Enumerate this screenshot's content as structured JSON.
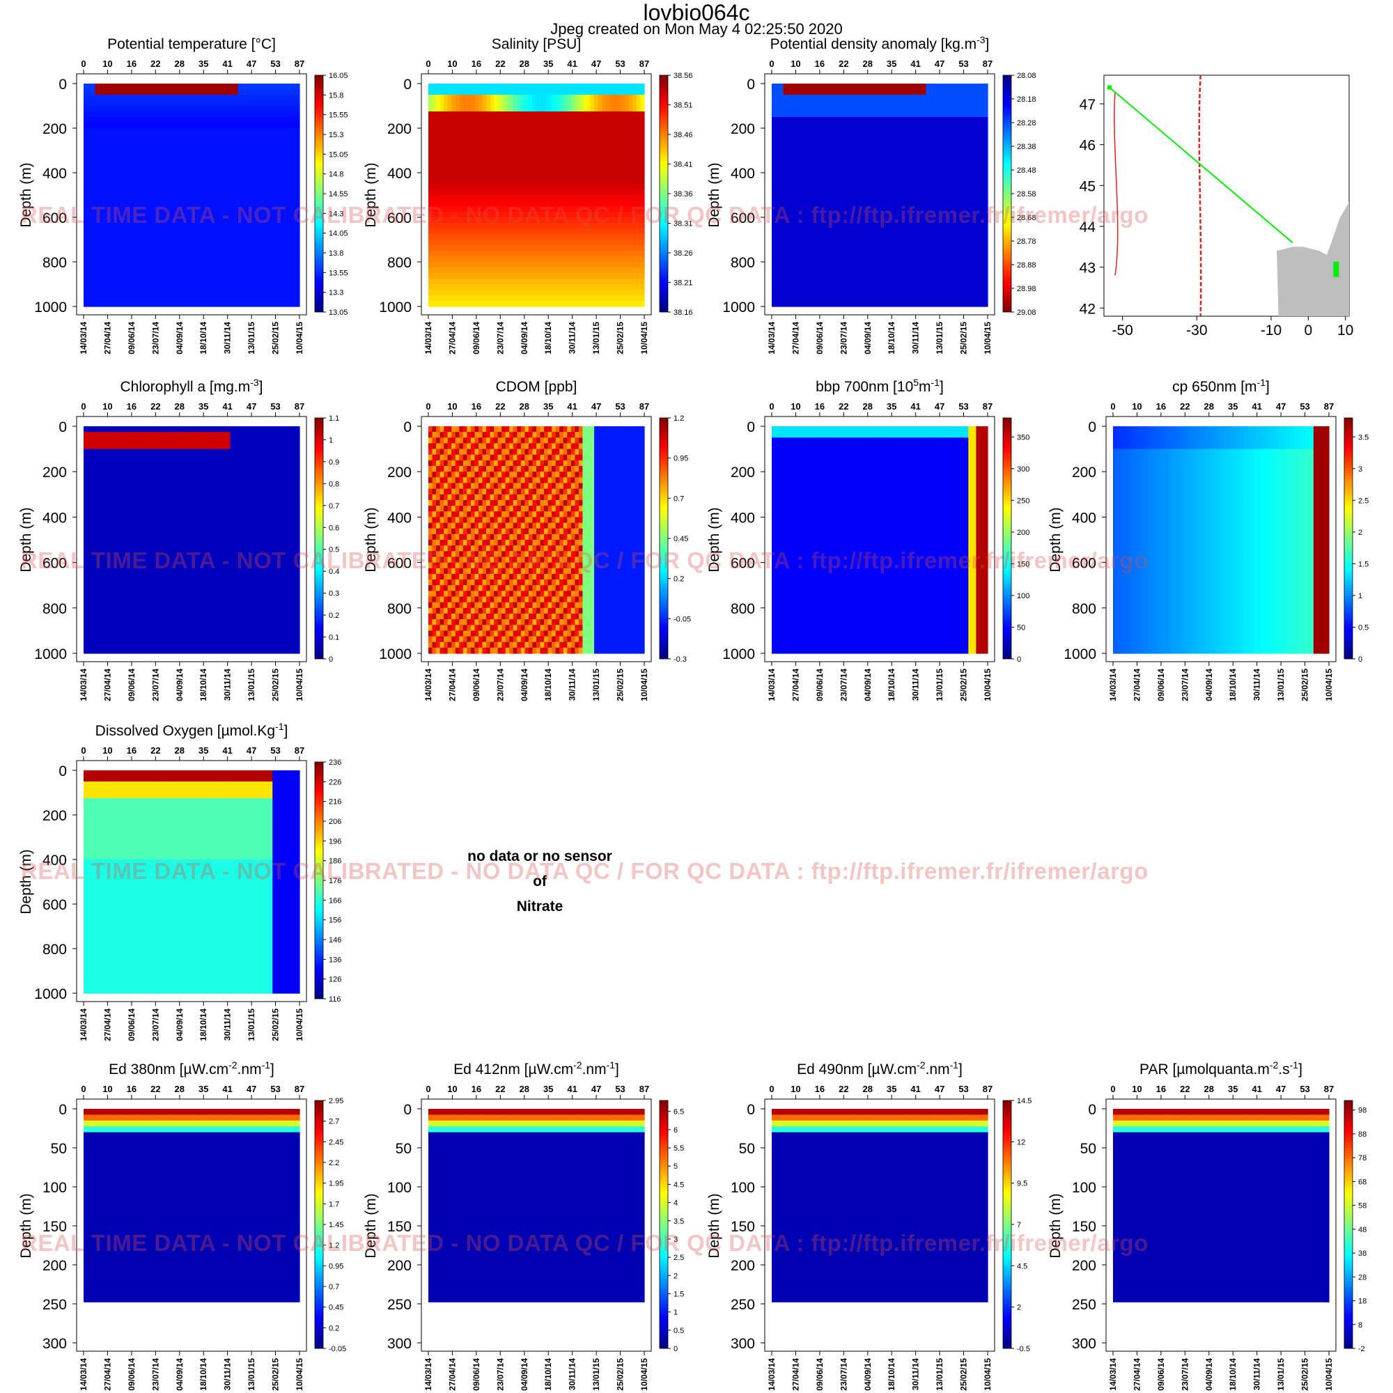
{
  "header": {
    "title": "lovbio064c",
    "subtitle": "Jpeg created on  Mon May  4 02:25:50 2020"
  },
  "watermark": "REAL TIME DATA - NOT CALIBRATED - NO DATA QC   /  FOR QC DATA : ftp://ftp.ifremer.fr/ifremer/argo",
  "no_data_panel": {
    "lines": [
      "no data or no sensor",
      "of",
      "Nitrate"
    ]
  },
  "colors": {
    "colormap": "jet",
    "low": "#00008F",
    "mid": "#00FFFF",
    "high": "#800000",
    "track": "#00EE00",
    "fronts": "#DD2222",
    "land": "#BEBEBE"
  },
  "chart_data": [
    {
      "type": "heatmap",
      "title": "Potential temperature [°C]",
      "ylabel": "Depth (m)",
      "top_axis_ticks": [
        "0",
        "10",
        "16",
        "22",
        "28",
        "35",
        "41",
        "47",
        "53",
        "87"
      ],
      "date_ticks": [
        "14/03/14",
        "27/04/14",
        "09/06/14",
        "23/07/14",
        "04/09/14",
        "18/10/14",
        "30/11/14",
        "13/01/15",
        "25/02/15",
        "10/04/15"
      ],
      "depth_ticks": [
        "0",
        "200",
        "400",
        "600",
        "800",
        "1000"
      ],
      "ylim": [
        1000,
        0
      ],
      "colorbar_ticks": [
        "16.05",
        "15.8",
        "15.55",
        "15.3",
        "15.05",
        "14.8",
        "14.55",
        "14.3",
        "14.05",
        "13.8",
        "13.55",
        "13.3",
        "13.05"
      ],
      "colorbar_range": [
        13.05,
        16.05
      ]
    },
    {
      "type": "heatmap",
      "title": "Salinity [PSU]",
      "ylabel": "Depth (m)",
      "top_axis_ticks": [
        "0",
        "10",
        "16",
        "22",
        "28",
        "35",
        "41",
        "47",
        "53",
        "87"
      ],
      "date_ticks": [
        "14/03/14",
        "27/04/14",
        "09/06/14",
        "23/07/14",
        "04/09/14",
        "18/10/14",
        "30/11/14",
        "13/01/15",
        "25/02/15",
        "10/04/15"
      ],
      "depth_ticks": [
        "0",
        "200",
        "400",
        "600",
        "800",
        "1000"
      ],
      "ylim": [
        1000,
        0
      ],
      "colorbar_ticks": [
        "38.56",
        "38.51",
        "38.46",
        "38.41",
        "38.36",
        "38.31",
        "38.26",
        "38.21",
        "38.16"
      ],
      "colorbar_range": [
        38.16,
        38.56
      ]
    },
    {
      "type": "heatmap",
      "title": "Potential density anomaly [kg.m",
      "title_sup": "-3",
      "title_end": "]",
      "ylabel": "Depth (m)",
      "top_axis_ticks": [
        "0",
        "10",
        "16",
        "22",
        "28",
        "35",
        "41",
        "47",
        "53",
        "87"
      ],
      "date_ticks": [
        "14/03/14",
        "27/04/14",
        "09/06/14",
        "23/07/14",
        "04/09/14",
        "18/10/14",
        "30/11/14",
        "13/01/15",
        "25/02/15",
        "10/04/15"
      ],
      "depth_ticks": [
        "0",
        "200",
        "400",
        "600",
        "800",
        "1000"
      ],
      "ylim": [
        1000,
        0
      ],
      "colorbar_ticks": [
        "29.08",
        "28.98",
        "28.88",
        "28.78",
        "28.68",
        "28.58",
        "28.48",
        "28.38",
        "28.28",
        "28.18",
        "28.08"
      ],
      "colorbar_range": [
        28.08,
        29.08
      ],
      "colorbar_reversed": true
    },
    {
      "type": "map",
      "x_ticks": [
        "-50",
        "-30",
        "-10",
        "0",
        "10"
      ],
      "y_ticks": [
        "47",
        "46",
        "45",
        "44",
        "43",
        "42"
      ],
      "xlim": [
        -55,
        11
      ],
      "ylim": [
        41.8,
        47.7
      ],
      "track": [
        [
          -53.5,
          47.4
        ],
        [
          -4.2,
          43.6
        ]
      ]
    },
    {
      "type": "heatmap",
      "title": "Chlorophyll a [mg.m",
      "title_sup": "-3",
      "title_end": "]",
      "ylabel": "Depth (m)",
      "top_axis_ticks": [
        "0",
        "10",
        "16",
        "22",
        "28",
        "35",
        "41",
        "47",
        "53",
        "87"
      ],
      "date_ticks": [
        "14/03/14",
        "27/04/14",
        "09/06/14",
        "23/07/14",
        "04/09/14",
        "18/10/14",
        "30/11/14",
        "13/01/15",
        "25/02/15",
        "10/04/15"
      ],
      "depth_ticks": [
        "0",
        "200",
        "400",
        "600",
        "800",
        "1000"
      ],
      "ylim": [
        1000,
        0
      ],
      "colorbar_ticks": [
        "1.1",
        "1",
        "0.9",
        "0.8",
        "0.7",
        "0.6",
        "0.5",
        "0.4",
        "0.3",
        "0.2",
        "0.1",
        "0"
      ],
      "colorbar_range": [
        0,
        1.1
      ]
    },
    {
      "type": "heatmap",
      "title": "CDOM  [ppb]",
      "ylabel": "Depth (m)",
      "top_axis_ticks": [
        "0",
        "10",
        "16",
        "22",
        "28",
        "35",
        "41",
        "47",
        "53",
        "87"
      ],
      "date_ticks": [
        "14/03/14",
        "27/04/14",
        "09/06/14",
        "23/07/14",
        "04/09/14",
        "18/10/14",
        "30/11/14",
        "13/01/15",
        "25/02/15",
        "10/04/15"
      ],
      "depth_ticks": [
        "0",
        "200",
        "400",
        "600",
        "800",
        "1000"
      ],
      "ylim": [
        1000,
        0
      ],
      "colorbar_ticks": [
        "1.2",
        "0.95",
        "0.7",
        "0.45",
        "0.2",
        "-0.05",
        "-0.3"
      ],
      "colorbar_range": [
        -0.3,
        1.2
      ]
    },
    {
      "type": "heatmap",
      "title": "bbp 700nm [10",
      "title_sup": "5",
      "title_mid": "m",
      "title_sup2": "-1",
      "title_end": "]",
      "ylabel": "Depth (m)",
      "top_axis_ticks": [
        "0",
        "10",
        "16",
        "22",
        "28",
        "35",
        "41",
        "47",
        "53",
        "87"
      ],
      "date_ticks": [
        "14/03/14",
        "27/04/14",
        "09/06/14",
        "23/07/14",
        "04/09/14",
        "18/10/14",
        "30/11/14",
        "13/01/15",
        "25/02/15",
        "10/04/15"
      ],
      "depth_ticks": [
        "0",
        "200",
        "400",
        "600",
        "800",
        "1000"
      ],
      "ylim": [
        1000,
        0
      ],
      "colorbar_ticks": [
        "350",
        "300",
        "250",
        "200",
        "150",
        "100",
        "50",
        "0"
      ],
      "colorbar_range": [
        0,
        380
      ]
    },
    {
      "type": "heatmap",
      "title": "cp 650nm [m",
      "title_sup": "-1",
      "title_end": "]",
      "ylabel": "Depth (m)",
      "top_axis_ticks": [
        "0",
        "10",
        "16",
        "22",
        "28",
        "35",
        "41",
        "47",
        "53",
        "87"
      ],
      "date_ticks": [
        "14/03/14",
        "27/04/14",
        "09/06/14",
        "23/07/14",
        "04/09/14",
        "18/10/14",
        "30/11/14",
        "13/01/15",
        "25/02/15",
        "10/04/15"
      ],
      "depth_ticks": [
        "0",
        "200",
        "400",
        "600",
        "800",
        "1000"
      ],
      "ylim": [
        1000,
        0
      ],
      "colorbar_ticks": [
        "3.5",
        "3",
        "2.5",
        "2",
        "1.5",
        "1",
        "0.5",
        "0"
      ],
      "colorbar_range": [
        0,
        3.8
      ]
    },
    {
      "type": "heatmap",
      "title": "Dissolved Oxygen [µmol.Kg",
      "title_sup": "-1",
      "title_end": "]",
      "ylabel": "Depth (m)",
      "top_axis_ticks": [
        "0",
        "10",
        "16",
        "22",
        "28",
        "35",
        "41",
        "47",
        "53",
        "87"
      ],
      "date_ticks": [
        "14/03/14",
        "27/04/14",
        "09/06/14",
        "23/07/14",
        "04/09/14",
        "18/10/14",
        "30/11/14",
        "13/01/15",
        "25/02/15",
        "10/04/15"
      ],
      "depth_ticks": [
        "0",
        "200",
        "400",
        "600",
        "800",
        "1000"
      ],
      "ylim": [
        1000,
        0
      ],
      "colorbar_ticks": [
        "236",
        "226",
        "216",
        "206",
        "196",
        "186",
        "176",
        "166",
        "156",
        "146",
        "136",
        "126",
        "116"
      ],
      "colorbar_range": [
        116,
        236
      ]
    },
    {
      "type": "heatmap",
      "title": "Ed 380nm [µW.cm",
      "title_sup": "-2",
      "title_mid": ".nm",
      "title_sup2": "-1",
      "title_end": "]",
      "ylabel": "Depth (m)",
      "top_axis_ticks": [
        "0",
        "10",
        "16",
        "22",
        "28",
        "35",
        "41",
        "47",
        "53",
        "87"
      ],
      "date_ticks": [
        "14/03/14",
        "27/04/14",
        "09/06/14",
        "23/07/14",
        "04/09/14",
        "18/10/14",
        "30/11/14",
        "13/01/15",
        "25/02/15",
        "10/04/15"
      ],
      "depth_ticks": [
        "0",
        "50",
        "100",
        "150",
        "200",
        "250",
        "300"
      ],
      "ylim": [
        300,
        0
      ],
      "data_max_depth": 250,
      "colorbar_ticks": [
        "2.95",
        "2.7",
        "2.45",
        "2.2",
        "1.95",
        "1.7",
        "1.45",
        "1.2",
        "0.95",
        "0.7",
        "0.45",
        "0.2",
        "-0.05"
      ],
      "colorbar_range": [
        -0.05,
        2.95
      ]
    },
    {
      "type": "heatmap",
      "title": "Ed 412nm [µW.cm",
      "title_sup": "-2",
      "title_mid": ".nm",
      "title_sup2": "-1",
      "title_end": "]",
      "ylabel": "Depth (m)",
      "top_axis_ticks": [
        "0",
        "10",
        "16",
        "22",
        "28",
        "35",
        "41",
        "47",
        "53",
        "87"
      ],
      "date_ticks": [
        "14/03/14",
        "27/04/14",
        "09/06/14",
        "23/07/14",
        "04/09/14",
        "18/10/14",
        "30/11/14",
        "13/01/15",
        "25/02/15",
        "10/04/15"
      ],
      "depth_ticks": [
        "0",
        "50",
        "100",
        "150",
        "200",
        "250",
        "300"
      ],
      "ylim": [
        300,
        0
      ],
      "data_max_depth": 250,
      "colorbar_ticks": [
        "6.5",
        "6",
        "5.5",
        "5",
        "4.5",
        "4",
        "3.5",
        "3",
        "2.5",
        "2",
        "1.5",
        "1",
        "0.5",
        "0"
      ],
      "colorbar_range": [
        0,
        6.8
      ]
    },
    {
      "type": "heatmap",
      "title": "Ed 490nm [µW.cm",
      "title_sup": "-2",
      "title_mid": ".nm",
      "title_sup2": "-1",
      "title_end": "]",
      "ylabel": "Depth (m)",
      "top_axis_ticks": [
        "0",
        "10",
        "16",
        "22",
        "28",
        "35",
        "41",
        "47",
        "53",
        "87"
      ],
      "date_ticks": [
        "14/03/14",
        "27/04/14",
        "09/06/14",
        "23/07/14",
        "04/09/14",
        "18/10/14",
        "30/11/14",
        "13/01/15",
        "25/02/15",
        "10/04/15"
      ],
      "depth_ticks": [
        "0",
        "50",
        "100",
        "150",
        "200",
        "250",
        "300"
      ],
      "ylim": [
        300,
        0
      ],
      "data_max_depth": 250,
      "colorbar_ticks": [
        "14.5",
        "12",
        "9.5",
        "7",
        "4.5",
        "2",
        "-0.5"
      ],
      "colorbar_range": [
        -0.5,
        14.5
      ]
    },
    {
      "type": "heatmap",
      "title": "PAR [µmolquanta.m",
      "title_sup": "-2",
      "title_mid": ".s",
      "title_sup2": "-1",
      "title_end": "]",
      "ylabel": "Depth (m)",
      "top_axis_ticks": [
        "0",
        "10",
        "16",
        "22",
        "28",
        "35",
        "41",
        "47",
        "53",
        "87"
      ],
      "date_ticks": [
        "14/03/14",
        "27/04/14",
        "09/06/14",
        "23/07/14",
        "04/09/14",
        "18/10/14",
        "30/11/14",
        "13/01/15",
        "25/02/15",
        "10/04/15"
      ],
      "depth_ticks": [
        "0",
        "50",
        "100",
        "150",
        "200",
        "250",
        "300"
      ],
      "ylim": [
        300,
        0
      ],
      "data_max_depth": 250,
      "colorbar_ticks": [
        "98",
        "88",
        "78",
        "68",
        "58",
        "48",
        "38",
        "28",
        "18",
        "8",
        "-2"
      ],
      "colorbar_range": [
        -2,
        102
      ]
    }
  ]
}
